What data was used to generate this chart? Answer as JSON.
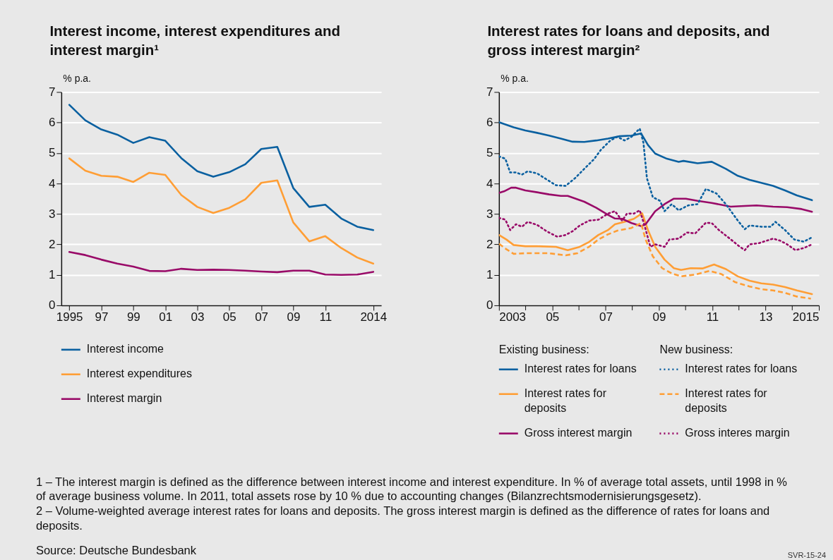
{
  "chart_data": [
    {
      "type": "line",
      "title": "Interest income, interest expenditures and interest margin¹",
      "ylabel": "% p.a.",
      "x": [
        1995,
        1996,
        1997,
        1998,
        1999,
        2000,
        2001,
        2002,
        2003,
        2004,
        2005,
        2006,
        2007,
        2008,
        2009,
        2010,
        2011,
        2012,
        2013,
        2014
      ],
      "xlim": [
        1994.5,
        2014.5
      ],
      "xticks": [
        {
          "value": 1995,
          "label": "1995"
        },
        {
          "value": 1997,
          "label": "97"
        },
        {
          "value": 1999,
          "label": "99"
        },
        {
          "value": 2001,
          "label": "01"
        },
        {
          "value": 2003,
          "label": "03"
        },
        {
          "value": 2005,
          "label": "05"
        },
        {
          "value": 2007,
          "label": "07"
        },
        {
          "value": 2009,
          "label": "09"
        },
        {
          "value": 2011,
          "label": "11"
        },
        {
          "value": 2014,
          "label": "2014"
        }
      ],
      "ylim": [
        0,
        7
      ],
      "yticks": [
        0,
        1,
        2,
        3,
        4,
        5,
        6,
        7
      ],
      "grid": "y",
      "legend": "bottom",
      "marker": "none",
      "series": [
        {
          "name": "Interest income",
          "color": "#0a60a0",
          "line_style": "solid",
          "values": [
            6.58,
            6.07,
            5.77,
            5.6,
            5.33,
            5.52,
            5.4,
            4.83,
            4.4,
            4.22,
            4.37,
            4.63,
            5.13,
            5.2,
            3.85,
            3.23,
            3.3,
            2.85,
            2.58,
            2.47
          ]
        },
        {
          "name": "Interest expenditures",
          "color": "#ff9e35",
          "line_style": "solid",
          "values": [
            4.82,
            4.42,
            4.25,
            4.22,
            4.05,
            4.35,
            4.28,
            3.62,
            3.23,
            3.03,
            3.2,
            3.48,
            4.02,
            4.1,
            2.72,
            2.1,
            2.27,
            1.88,
            1.57,
            1.37
          ]
        },
        {
          "name": "Interest margin",
          "color": "#990a68",
          "line_style": "solid",
          "values": [
            1.75,
            1.65,
            1.5,
            1.37,
            1.27,
            1.13,
            1.12,
            1.2,
            1.16,
            1.17,
            1.16,
            1.14,
            1.11,
            1.09,
            1.14,
            1.14,
            1.01,
            1.0,
            1.01,
            1.1
          ]
        }
      ],
      "annotations": [
        "1 – The interest margin is defined as the difference between interest income and interest expenditure. In % of average total assets, until 1998 in % of average business volume. In 2011, total assets rose by 10 % due to accounting changes (Bilanzrechtsmodernisierungsgesetz).",
        "2 – Volume-weighted average interest rates for loans and deposits. The gross interest margin is defined as the difference of rates for loans and deposits.",
        "Source: Deutsche Bundesbank",
        "SVR-15-24"
      ]
    },
    {
      "type": "line",
      "title": "Interest rates for loans and deposits, and gross interest margin²",
      "ylabel": "% p.a.",
      "xlim": [
        2003,
        2015
      ],
      "xticks": [
        {
          "value": 2003,
          "label": "2003"
        },
        {
          "value": 2004,
          "label": null
        },
        {
          "value": 2005,
          "label": "05"
        },
        {
          "value": 2006,
          "label": null
        },
        {
          "value": 2007,
          "label": "07"
        },
        {
          "value": 2008,
          "label": null
        },
        {
          "value": 2009,
          "label": "09"
        },
        {
          "value": 2010,
          "label": null
        },
        {
          "value": 2011,
          "label": "11"
        },
        {
          "value": 2012,
          "label": null
        },
        {
          "value": 2013,
          "label": "13"
        },
        {
          "value": 2014,
          "label": null
        },
        {
          "value": 2015,
          "label": "2015"
        }
      ],
      "ylim": [
        0,
        7
      ],
      "yticks": [
        0,
        1,
        2,
        3,
        4,
        5,
        6,
        7
      ],
      "grid": "y",
      "legend": "bottom",
      "marker": "none",
      "annotations": [
        "Existing business:",
        "New business:"
      ],
      "series": [
        {
          "name": "Interest rates for loans",
          "color": "#0a60a0",
          "line_style": "solid",
          "x": [
            2003.0,
            2003.55,
            2003.99,
            2004.43,
            2004.88,
            2005.32,
            2005.76,
            2006.2,
            2006.65,
            2007.09,
            2007.53,
            2007.97,
            2008.33,
            2008.59,
            2008.86,
            2009.3,
            2009.74,
            2009.92,
            2010.45,
            2010.98,
            2011.51,
            2011.96,
            2012.4,
            2012.84,
            2013.28,
            2013.73,
            2014.17,
            2014.74
          ],
          "values": [
            6.01,
            5.84,
            5.74,
            5.66,
            5.57,
            5.47,
            5.37,
            5.36,
            5.41,
            5.47,
            5.55,
            5.57,
            5.64,
            5.26,
            4.98,
            4.81,
            4.71,
            4.74,
            4.66,
            4.71,
            4.48,
            4.25,
            4.12,
            4.02,
            3.92,
            3.77,
            3.61,
            3.45
          ]
        },
        {
          "name": "Interest rates for deposits",
          "color": "#ff9e35",
          "line_style": "solid",
          "x": [
            2003.0,
            2003.28,
            2003.55,
            2003.99,
            2004.43,
            2005.14,
            2005.58,
            2006.03,
            2006.38,
            2006.73,
            2007.09,
            2007.35,
            2007.71,
            2008.06,
            2008.37,
            2008.59,
            2008.86,
            2009.21,
            2009.56,
            2009.83,
            2010.19,
            2010.63,
            2011.07,
            2011.51,
            2011.96,
            2012.4,
            2012.84,
            2013.28,
            2013.73,
            2014.17,
            2014.74
          ],
          "values": [
            2.31,
            2.16,
            1.98,
            1.94,
            1.94,
            1.92,
            1.81,
            1.92,
            2.08,
            2.31,
            2.47,
            2.66,
            2.74,
            2.84,
            3.02,
            2.47,
            1.92,
            1.5,
            1.22,
            1.16,
            1.22,
            1.21,
            1.34,
            1.19,
            0.95,
            0.81,
            0.72,
            0.68,
            0.6,
            0.49,
            0.37
          ]
        },
        {
          "name": "Gross interest margin",
          "color": "#990a68",
          "line_style": "solid",
          "x": [
            2003.0,
            2003.19,
            2003.46,
            2003.64,
            2003.99,
            2004.43,
            2004.88,
            2005.32,
            2005.58,
            2006.2,
            2006.65,
            2007.09,
            2007.35,
            2007.62,
            2007.97,
            2008.33,
            2008.5,
            2008.86,
            2009.21,
            2009.56,
            2010.01,
            2010.45,
            2010.98,
            2011.69,
            2012.22,
            2012.66,
            2013.28,
            2013.81,
            2014.35,
            2014.74
          ],
          "values": [
            3.69,
            3.74,
            3.86,
            3.86,
            3.77,
            3.71,
            3.64,
            3.59,
            3.59,
            3.4,
            3.2,
            2.97,
            2.85,
            2.84,
            2.7,
            2.6,
            2.66,
            3.09,
            3.32,
            3.5,
            3.5,
            3.43,
            3.36,
            3.24,
            3.26,
            3.28,
            3.24,
            3.22,
            3.16,
            3.07
          ]
        },
        {
          "name": "Interest rates for loans",
          "color": "#0a60a0",
          "line_style": "dotted",
          "x": [
            2003.0,
            2003.24,
            2003.42,
            2003.64,
            2003.86,
            2004.08,
            2004.43,
            2004.79,
            2005.14,
            2005.5,
            2005.85,
            2006.2,
            2006.56,
            2006.82,
            2007.18,
            2007.44,
            2007.71,
            2007.97,
            2008.28,
            2008.42,
            2008.55,
            2008.77,
            2009.04,
            2009.21,
            2009.48,
            2009.74,
            2010.1,
            2010.45,
            2010.76,
            2011.16,
            2011.51,
            2011.96,
            2012.22,
            2012.4,
            2012.84,
            2013.19,
            2013.37,
            2013.73,
            2014.08,
            2014.43,
            2014.74
          ],
          "values": [
            4.89,
            4.81,
            4.36,
            4.36,
            4.29,
            4.4,
            4.33,
            4.13,
            3.94,
            3.92,
            4.17,
            4.48,
            4.79,
            5.1,
            5.41,
            5.53,
            5.41,
            5.53,
            5.8,
            5.33,
            4.17,
            3.55,
            3.43,
            3.09,
            3.32,
            3.12,
            3.28,
            3.32,
            3.82,
            3.67,
            3.32,
            2.78,
            2.5,
            2.62,
            2.58,
            2.58,
            2.74,
            2.47,
            2.16,
            2.09,
            2.23
          ]
        },
        {
          "name": "Interest rates for deposits",
          "color": "#ff9e35",
          "line_style": "dashed",
          "x": [
            2003.0,
            2003.28,
            2003.55,
            2003.99,
            2004.88,
            2005.5,
            2005.94,
            2006.38,
            2006.73,
            2007.09,
            2007.44,
            2007.97,
            2008.33,
            2008.5,
            2008.77,
            2009.12,
            2009.48,
            2009.83,
            2010.36,
            2010.89,
            2011.33,
            2011.86,
            2012.4,
            2012.84,
            2013.28,
            2013.73,
            2014.17,
            2014.7
          ],
          "values": [
            2.02,
            1.84,
            1.69,
            1.71,
            1.71,
            1.64,
            1.71,
            1.92,
            2.16,
            2.33,
            2.45,
            2.54,
            2.7,
            2.16,
            1.61,
            1.22,
            1.05,
            0.95,
            1.01,
            1.13,
            1.03,
            0.76,
            0.62,
            0.53,
            0.49,
            0.41,
            0.29,
            0.22
          ]
        },
        {
          "name": "Gross interes margin",
          "color": "#990a68",
          "line_style": "dotted",
          "x": [
            2003.0,
            2003.24,
            2003.42,
            2003.64,
            2003.86,
            2004.08,
            2004.43,
            2004.79,
            2005.19,
            2005.5,
            2005.76,
            2006.03,
            2006.38,
            2006.73,
            2007.09,
            2007.35,
            2007.62,
            2007.8,
            2008.06,
            2008.28,
            2008.46,
            2008.68,
            2008.86,
            2009.21,
            2009.39,
            2009.74,
            2010.05,
            2010.36,
            2010.76,
            2010.98,
            2011.25,
            2011.6,
            2012.04,
            2012.22,
            2012.4,
            2012.75,
            2013.28,
            2013.55,
            2013.81,
            2014.12,
            2014.43,
            2014.74
          ],
          "values": [
            2.87,
            2.81,
            2.47,
            2.66,
            2.58,
            2.74,
            2.64,
            2.43,
            2.25,
            2.31,
            2.43,
            2.62,
            2.78,
            2.81,
            3.01,
            3.09,
            2.78,
            3.01,
            3.01,
            3.12,
            2.62,
            1.92,
            2.0,
            1.92,
            2.16,
            2.19,
            2.39,
            2.36,
            2.71,
            2.7,
            2.47,
            2.23,
            1.92,
            1.81,
            2.0,
            2.04,
            2.19,
            2.12,
            2.0,
            1.81,
            1.88,
            2.0
          ]
        }
      ]
    }
  ]
}
